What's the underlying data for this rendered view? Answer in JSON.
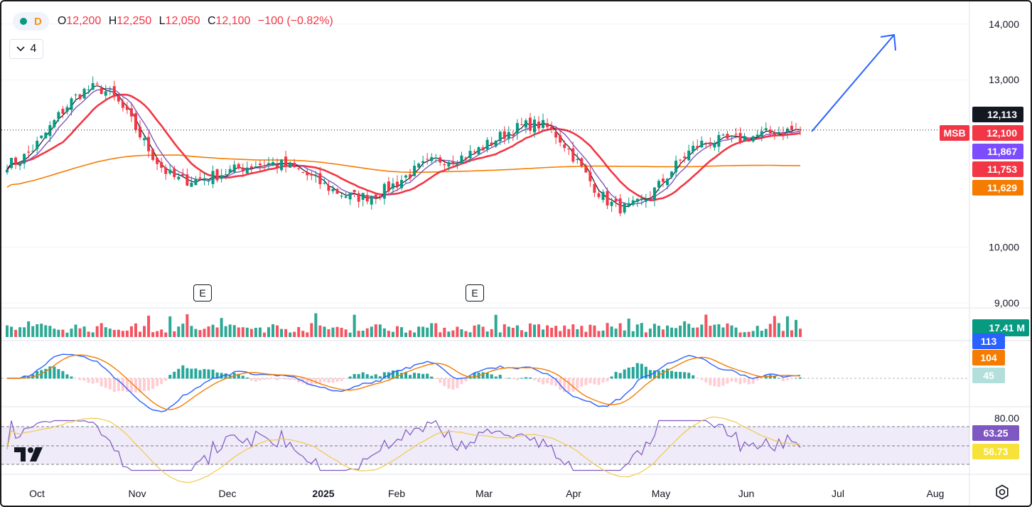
{
  "legend": {
    "interval": "D",
    "dot_color": "#089981",
    "open_key": "O",
    "open": "12,200",
    "high_key": "H",
    "high": "12,250",
    "low_key": "L",
    "low": "12,050",
    "close_key": "C",
    "close": "12,100",
    "change": "−100 (−0.82%)",
    "collapse_count": "4"
  },
  "icons": {
    "collapse": "chevron-down-icon",
    "logo": "tradingview-logo",
    "settings": "settings-icon",
    "earnings": "earnings-icon"
  },
  "colors": {
    "up": "#089981",
    "down": "#f23645",
    "sma_fast": "#131722",
    "sma_mid": "#7e57c2",
    "sma_slow": "#f23645",
    "sma_long": "#f57c00",
    "arrow": "#2962ff",
    "rsi": "#7e57c2",
    "rsi_ma": "#f2c94c",
    "macd": "#2962ff",
    "signal": "#f57c00"
  },
  "earnings_marker_label": "E",
  "chart_data": {
    "type": "candlestick",
    "symbol": "MSB",
    "x_ticks": [
      "Oct",
      "Nov",
      "Dec",
      "2025",
      "Feb",
      "Mar",
      "Apr",
      "May",
      "Jun",
      "Jul",
      "Aug"
    ],
    "y_ticks": [
      "14,000",
      "13,000",
      "10,000",
      "9,000"
    ],
    "y_range": [
      8950,
      14150
    ],
    "price_tags": [
      {
        "label": "12,113",
        "value": 12113,
        "color": "#131722"
      },
      {
        "label": "12,100",
        "value": 12100,
        "color": "#f23645"
      },
      {
        "label": "11,867",
        "value": 11867,
        "color": "#7c4dff"
      },
      {
        "label": "11,753",
        "value": 11753,
        "color": "#f23645"
      },
      {
        "label": "11,629",
        "value": 11629,
        "color": "#f57c00"
      }
    ],
    "symbol_tag": "MSB",
    "monthly_closes": [
      {
        "month": "Sep",
        "close": 11500
      },
      {
        "month": "Oct",
        "close": 12850
      },
      {
        "month": "Nov",
        "close": 11200
      },
      {
        "month": "Dec",
        "close": 11500
      },
      {
        "month": "Jan",
        "close": 10900
      },
      {
        "month": "Feb",
        "close": 11580
      },
      {
        "month": "Mar",
        "close": 12200
      },
      {
        "month": "Apr",
        "close": 10700
      },
      {
        "month": "May",
        "close": 11900
      },
      {
        "month": "Jun",
        "close": 12100
      }
    ],
    "moving_averages": [
      "sma_fast",
      "sma_mid",
      "sma_slow",
      "sma_long"
    ],
    "volume": {
      "last": "17.41 M",
      "color": "#089981"
    },
    "macd": {
      "tags": [
        {
          "label": "113",
          "color": "#2962ff"
        },
        {
          "label": "104",
          "color": "#f57c00"
        },
        {
          "label": "45",
          "color": "#b2dfdb"
        }
      ]
    },
    "rsi": {
      "top_band": "80.00",
      "tags": [
        {
          "label": "63.25",
          "color": "#7e57c2"
        },
        {
          "label": "56.73",
          "color": "#f7e23a"
        }
      ]
    },
    "annotation": "up-arrow"
  }
}
